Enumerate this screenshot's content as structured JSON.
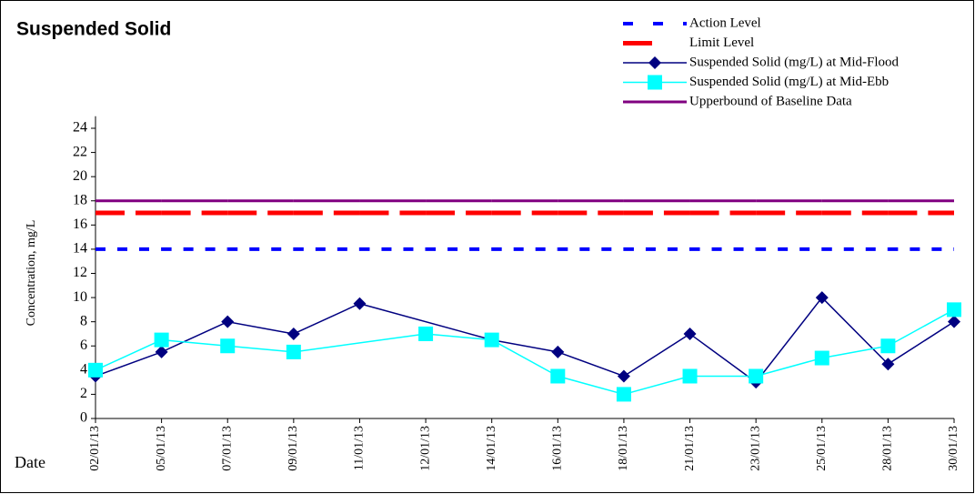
{
  "chart_data": {
    "type": "line",
    "title": "Suspended Solid",
    "y_label": "Concentration, mg/L",
    "x_label": "Date",
    "categories": [
      "02/01/13",
      "05/01/13",
      "07/01/13",
      "09/01/13",
      "11/01/13",
      "12/01/13",
      "14/01/13",
      "16/01/13",
      "18/01/13",
      "21/01/13",
      "23/01/13",
      "25/01/13",
      "28/01/13",
      "30/01/13"
    ],
    "series": [
      {
        "name": "Action Level",
        "color": "#0000ff",
        "line_style": "dotted",
        "marker": null,
        "values": [
          14,
          14,
          14,
          14,
          14,
          14,
          14,
          14,
          14,
          14,
          14,
          14,
          14,
          14
        ]
      },
      {
        "name": "Limit Level",
        "color": "#ff0000",
        "line_style": "dashed",
        "marker": null,
        "values": [
          17,
          17,
          17,
          17,
          17,
          17,
          17,
          17,
          17,
          17,
          17,
          17,
          17,
          17
        ]
      },
      {
        "name": "Suspended Solid (mg/L) at Mid-Flood",
        "color": "#000080",
        "line_style": "solid",
        "marker": "diamond",
        "values": [
          3.5,
          5.5,
          8,
          7,
          9.5,
          null,
          6.5,
          5.5,
          3.5,
          7,
          3,
          10,
          4.5,
          8
        ]
      },
      {
        "name": "Suspended Solid (mg/L) at Mid-Ebb",
        "color": "#00ffff",
        "line_style": "solid",
        "marker": "square",
        "values": [
          4,
          6.5,
          6,
          5.5,
          null,
          7,
          6.5,
          3.5,
          2,
          3.5,
          3.5,
          5,
          6,
          9
        ]
      },
      {
        "name": "Upperbound of Baseline Data",
        "color": "#800080",
        "line_style": "solid",
        "marker": null,
        "values": [
          18,
          18,
          18,
          18,
          18,
          18,
          18,
          18,
          18,
          18,
          18,
          18,
          18,
          18
        ]
      }
    ],
    "ylim": [
      0,
      25
    ],
    "yticks": [
      0,
      2,
      4,
      6,
      8,
      10,
      12,
      14,
      16,
      18,
      20,
      22,
      24
    ],
    "grid": false,
    "legend": "top-right"
  }
}
